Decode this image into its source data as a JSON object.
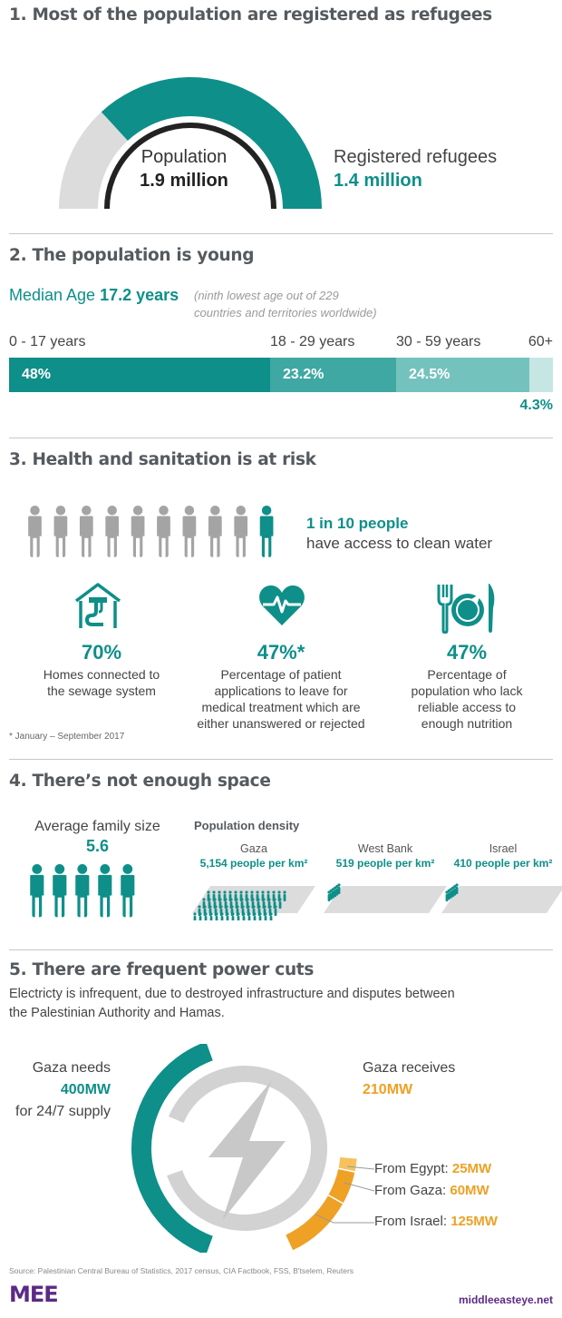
{
  "colors": {
    "teal": "#0e8f89",
    "teal_mid": "#3fa8a3",
    "teal_light": "#74c2bd",
    "teal_pale": "#c6e6e4",
    "grey": "#a4a4a4",
    "light_grey": "#dcdcdc",
    "orange": "#eea125",
    "purple": "#5b2a86"
  },
  "section1": {
    "heading": "1. Most of the population are registered as refugees",
    "population_label": "Population",
    "population_value": "1.9 million",
    "refugees_label": "Registered refugees",
    "refugees_value": "1.4 million"
  },
  "section2": {
    "heading": "2. The population is young",
    "median_label": "Median Age",
    "median_value": "17.2 years",
    "median_note_line1": "(ninth lowest age  out of 229",
    "median_note_line2": "countries and territories worldwide)"
  },
  "section3": {
    "heading": "3. Health and sanitation is at risk",
    "water_bold": "1 in 10 people",
    "water_text": "have access to clean water",
    "stat1_value": "70%",
    "stat1_line1": "Homes connected to",
    "stat1_line2": "the sewage system",
    "stat2_value": "47%*",
    "stat2_line1": "Percentage of patient",
    "stat2_line2": "applications to leave for",
    "stat2_line3": "medical treatment which are",
    "stat2_line4": "either unanswered or rejected",
    "stat3_value": "47%",
    "stat3_line1": "Percentage of",
    "stat3_line2": "population who lack",
    "stat3_line3": "reliable access to",
    "stat3_line4": "enough nutrition",
    "footnote": "* January – September 2017",
    "icons": [
      "person-icon",
      "house-pipe-icon",
      "heart-pulse-icon",
      "plate-cutlery-icon"
    ]
  },
  "section4": {
    "heading": "4. There’s not enough space",
    "family_label": "Average family size",
    "family_value": "5.6",
    "density_title": "Population density",
    "gaza_name": "Gaza",
    "gaza_value": "5,154 people per km²",
    "westbank_name": "West Bank",
    "westbank_value": "519 people per km²",
    "israel_name": "Israel",
    "israel_value": "410 people per km²"
  },
  "section5": {
    "heading": "5. There are frequent power cuts",
    "intro_line1": "Electricty is infrequent, due to destroyed infrastructure and disputes between",
    "intro_line2": "the Palestinian Authority and Hamas.",
    "needs_label": "Gaza needs",
    "needs_value": "400MW",
    "needs_note": "for 24/7 supply",
    "receives_label": "Gaza receives",
    "receives_value": "210MW",
    "egypt_label": "From Egypt:",
    "egypt_value": "25MW",
    "gaza_label": "From Gaza:",
    "gaza_value": "60MW",
    "israel_label": "From Israel:",
    "israel_value": "125MW",
    "icon": "lightning-bolt-icon"
  },
  "footer": {
    "source": "Source: Palestinian Central Bureau of Statistics, 2017 census, CIA Factbook, FSS, B'tselem, Reuters",
    "logo_text": "MEE",
    "site": "middleeasteye.net"
  },
  "chart_data": [
    {
      "type": "pie",
      "title": "1. Most of the population are registered as refugees",
      "categories": [
        "Registered refugees",
        "Population"
      ],
      "values": [
        1.4,
        1.9
      ],
      "unit": "million"
    },
    {
      "type": "bar",
      "title": "2. The population is young",
      "categories": [
        "0 - 17 years",
        "18 - 29 years",
        "30 - 59 years",
        "60+"
      ],
      "values": [
        48,
        23.2,
        24.5,
        4.3
      ],
      "labels": [
        "48%",
        "23.2%",
        "24.5%",
        "4.3%"
      ],
      "unit": "%"
    },
    {
      "type": "bar",
      "title": "4. There’s not enough space",
      "subtitle": "Population density",
      "categories": [
        "Gaza",
        "West Bank",
        "Israel"
      ],
      "values": [
        5154,
        519,
        410
      ],
      "unit": "people per km²"
    },
    {
      "type": "pie",
      "title": "5. There are frequent power cuts",
      "needs": 400,
      "receives": 210,
      "categories": [
        "From Egypt:",
        "From Gaza:",
        "From Israel:"
      ],
      "values": [
        25,
        60,
        125
      ],
      "unit": "MW"
    }
  ]
}
